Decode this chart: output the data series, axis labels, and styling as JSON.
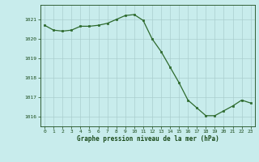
{
  "hours": [
    0,
    1,
    2,
    3,
    4,
    5,
    6,
    7,
    8,
    9,
    10,
    11,
    12,
    13,
    14,
    15,
    16,
    17,
    18,
    19,
    20,
    21,
    22,
    23
  ],
  "pressure": [
    1020.7,
    1020.45,
    1020.4,
    1020.45,
    1020.65,
    1020.65,
    1020.7,
    1020.8,
    1021.0,
    1021.2,
    1021.25,
    1020.95,
    1020.0,
    1019.35,
    1018.55,
    1017.75,
    1016.85,
    1016.45,
    1016.05,
    1016.05,
    1016.3,
    1016.55,
    1016.85,
    1016.7
  ],
  "line_color": "#2d6a2d",
  "marker_color": "#2d6a2d",
  "bg_color": "#c8ecec",
  "grid_color": "#aacece",
  "xlabel": "Graphe pression niveau de la mer (hPa)",
  "tick_color": "#1a4a1a",
  "ylim": [
    1015.5,
    1021.75
  ],
  "yticks": [
    1016,
    1017,
    1018,
    1019,
    1020,
    1021
  ],
  "xlim": [
    -0.5,
    23.5
  ],
  "xticks": [
    0,
    1,
    2,
    3,
    4,
    5,
    6,
    7,
    8,
    9,
    10,
    11,
    12,
    13,
    14,
    15,
    16,
    17,
    18,
    19,
    20,
    21,
    22,
    23
  ]
}
